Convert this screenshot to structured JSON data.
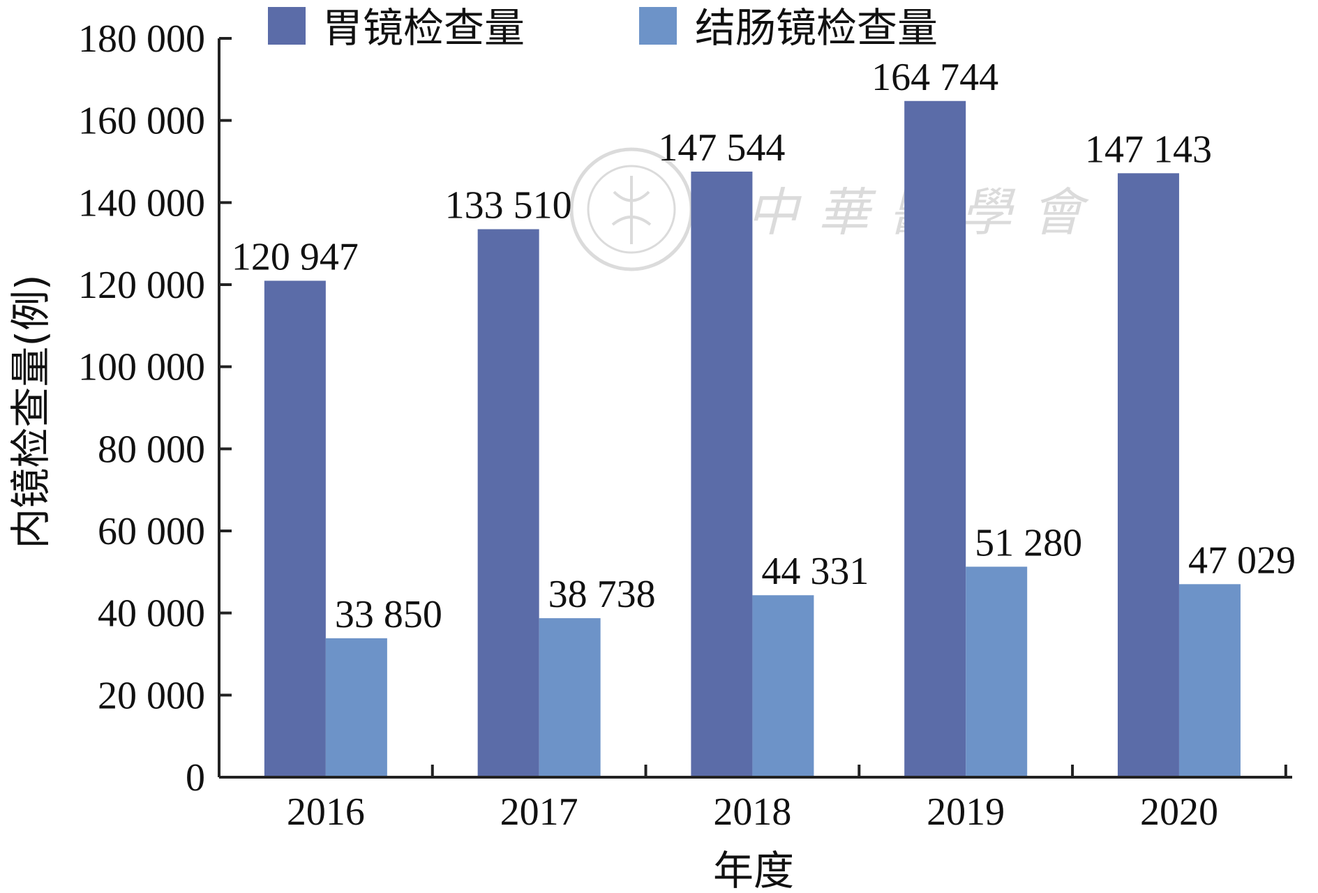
{
  "chart_data": {
    "type": "bar",
    "categories": [
      "2016",
      "2017",
      "2018",
      "2019",
      "2020"
    ],
    "series": [
      {
        "name": "胃镜检查量",
        "values": [
          120947,
          133510,
          147544,
          164744,
          147143
        ],
        "labels": [
          "120 947",
          "133 510",
          "147 544",
          "164 744",
          "147 143"
        ],
        "color": "#5b6ca8"
      },
      {
        "name": "结肠镜检查量",
        "values": [
          33850,
          38738,
          44331,
          51280,
          47029
        ],
        "labels": [
          "33 850",
          "38 738",
          "44 331",
          "51 280",
          "47 029"
        ],
        "color": "#6d93c8"
      }
    ],
    "ylabel": "内镜检查量(例)",
    "xlabel": "年度",
    "ylim": [
      0,
      180000
    ],
    "yticks": [
      0,
      20000,
      40000,
      60000,
      80000,
      100000,
      120000,
      140000,
      160000,
      180000
    ],
    "ytick_labels": [
      "0",
      "20 000",
      "40 000",
      "60 000",
      "80 000",
      "100 000",
      "120 000",
      "140 000",
      "160 000",
      "180 000"
    ],
    "grid": false,
    "legend_position": "top",
    "watermark": "中華醫學會"
  }
}
